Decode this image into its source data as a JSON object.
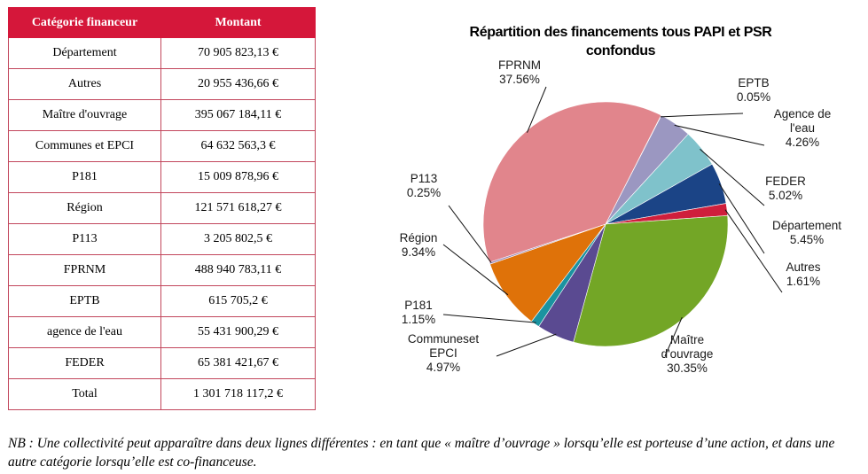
{
  "table": {
    "headers": [
      "Catégorie financeur",
      "Montant"
    ],
    "rows": [
      {
        "category": "Département",
        "amount": "70 905 823,13 €"
      },
      {
        "category": "Autres",
        "amount": "20 955 436,66 €"
      },
      {
        "category": "Maître d'ouvrage",
        "amount": "395 067 184,11 €"
      },
      {
        "category": "Communes et EPCI",
        "amount": "64 632 563,3 €"
      },
      {
        "category": "P181",
        "amount": "15 009 878,96 €"
      },
      {
        "category": "Région",
        "amount": "121 571 618,27 €"
      },
      {
        "category": "P113",
        "amount": "3 205 802,5 €"
      },
      {
        "category": "FPRNM",
        "amount": "488 940 783,11 €"
      },
      {
        "category": "EPTB",
        "amount": "615 705,2 €"
      },
      {
        "category": "agence de l'eau",
        "amount": "55 431 900,29 €"
      },
      {
        "category": "FEDER",
        "amount": "65 381 421,67 €"
      },
      {
        "category": "Total",
        "amount": "1 301 718 117,2 €"
      }
    ],
    "header_color": "#d5173a"
  },
  "chart_data": {
    "type": "pie",
    "title": "Répartition des financements tous PAPI et PSR confondus",
    "title_lines": [
      "Répartition des financements tous PAPI et PSR",
      "confondus"
    ],
    "slices": [
      {
        "label": "EPTB",
        "label_lines": [
          "EPTB"
        ],
        "pct_text": "0.05%",
        "value": 0.05,
        "color": "#7d76a3"
      },
      {
        "label": "Agence de l'eau",
        "label_lines": [
          "Agence de",
          "l'eau"
        ],
        "pct_text": "4.26%",
        "value": 4.26,
        "color": "#9b97c1"
      },
      {
        "label": "FEDER",
        "label_lines": [
          "FEDER"
        ],
        "pct_text": "5.02%",
        "value": 5.02,
        "color": "#7fc2cb"
      },
      {
        "label": "Département",
        "label_lines": [
          "Département"
        ],
        "pct_text": "5.45%",
        "value": 5.45,
        "color": "#1b4486"
      },
      {
        "label": "Autres",
        "label_lines": [
          "Autres"
        ],
        "pct_text": "1.61%",
        "value": 1.61,
        "color": "#cf1f3c"
      },
      {
        "label": "Maître d'ouvrage",
        "label_lines": [
          "Maître",
          "d'ouvrage"
        ],
        "pct_text": "30.35%",
        "value": 30.35,
        "color": "#73a626"
      },
      {
        "label": "Communeset EPCI",
        "label_lines": [
          "Communeset",
          "EPCI"
        ],
        "pct_text": "4.97%",
        "value": 4.97,
        "color": "#5a4a91"
      },
      {
        "label": "P181",
        "label_lines": [
          "P181"
        ],
        "pct_text": "1.15%",
        "value": 1.15,
        "color": "#1b93a0"
      },
      {
        "label": "Région",
        "label_lines": [
          "Région"
        ],
        "pct_text": "9.34%",
        "value": 9.34,
        "color": "#df7209"
      },
      {
        "label": "P113",
        "label_lines": [
          "P113"
        ],
        "pct_text": "0.25%",
        "value": 0.25,
        "color": "#9c8ab8"
      },
      {
        "label": "FPRNM",
        "label_lines": [
          "FPRNM"
        ],
        "pct_text": "37.56%",
        "value": 37.56,
        "color": "#e1858c"
      }
    ]
  },
  "note": "NB : Une collectivité peut apparaître dans deux lignes différentes : en tant que « maître d’ouvrage » lorsqu’elle est porteuse d’une action, et dans une autre catégorie lorsqu’elle est co-financeuse."
}
